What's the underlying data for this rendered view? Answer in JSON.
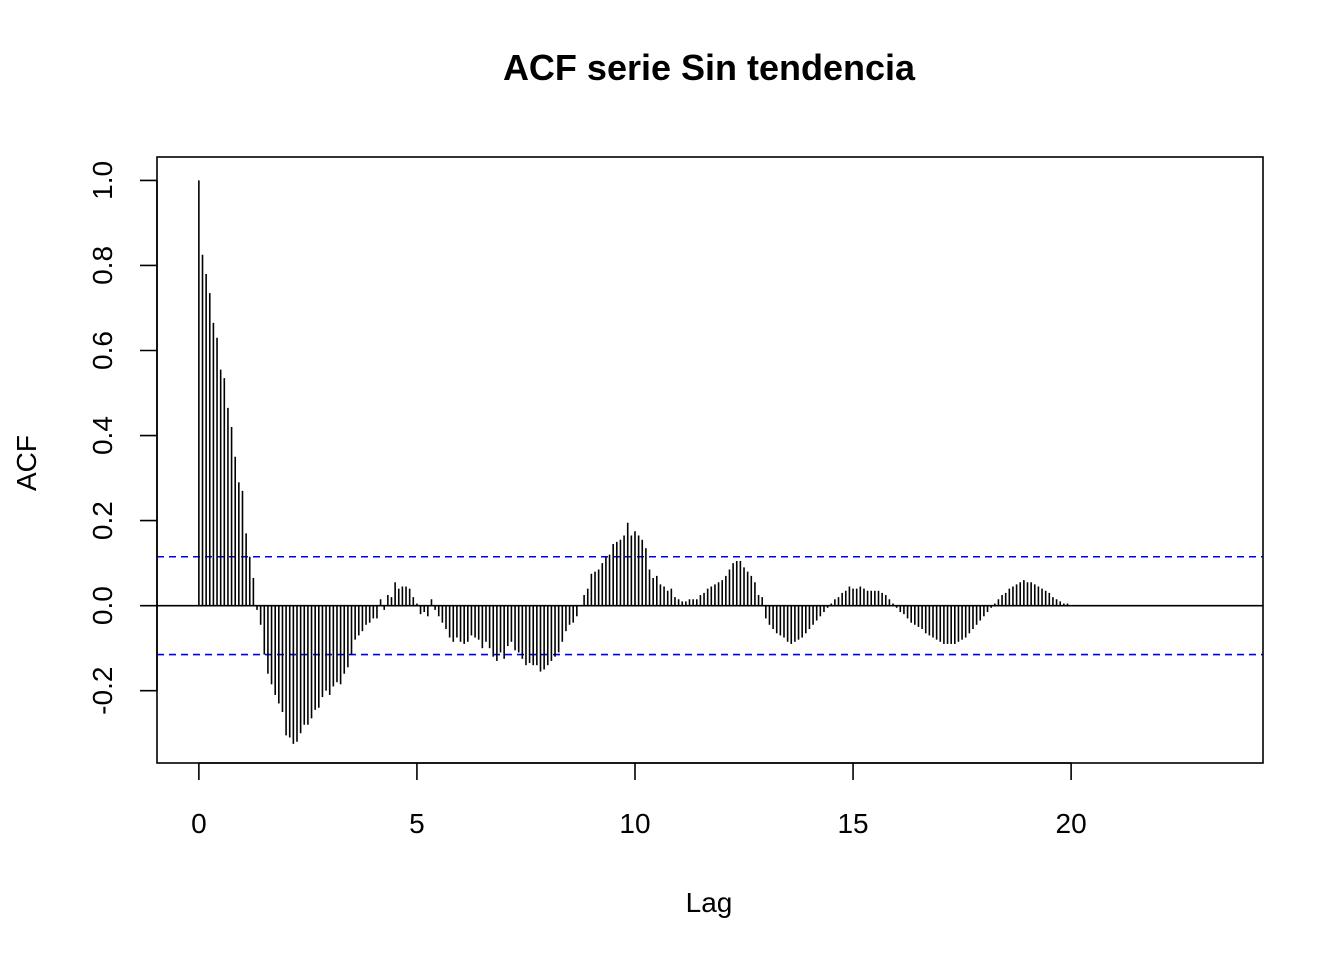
{
  "chart_data": {
    "type": "bar",
    "title": "ACF serie Sin tendencia",
    "xlabel": "Lag",
    "ylabel": "ACF",
    "xlim": [
      -0.96,
      24.4
    ],
    "ylim": [
      -0.37,
      1.055
    ],
    "xticks": [
      0,
      5,
      10,
      15,
      20
    ],
    "xtick_labels": [
      "0",
      "5",
      "10",
      "15",
      "20"
    ],
    "yticks": [
      -0.2,
      0.0,
      0.2,
      0.4,
      0.6,
      0.8,
      1.0
    ],
    "ytick_labels": [
      "-0.2",
      "0.0",
      "0.2",
      "0.4",
      "0.6",
      "0.8",
      "1.0"
    ],
    "confidence_bound": 0.115,
    "confidence_color": "#0000ee",
    "lag_step": 0.0833333,
    "values": [
      1.0,
      0.825,
      0.78,
      0.735,
      0.665,
      0.63,
      0.555,
      0.535,
      0.465,
      0.42,
      0.35,
      0.29,
      0.27,
      0.17,
      0.115,
      0.065,
      -0.01,
      -0.045,
      -0.115,
      -0.16,
      -0.185,
      -0.21,
      -0.23,
      -0.25,
      -0.305,
      -0.31,
      -0.325,
      -0.32,
      -0.3,
      -0.28,
      -0.28,
      -0.265,
      -0.245,
      -0.24,
      -0.215,
      -0.2,
      -0.21,
      -0.19,
      -0.18,
      -0.185,
      -0.16,
      -0.145,
      -0.115,
      -0.08,
      -0.07,
      -0.06,
      -0.045,
      -0.04,
      -0.03,
      -0.03,
      0.015,
      -0.01,
      0.025,
      0.02,
      0.055,
      0.04,
      0.045,
      0.045,
      0.04,
      0.02,
      0.005,
      -0.02,
      -0.015,
      -0.025,
      0.015,
      -0.01,
      -0.025,
      -0.04,
      -0.055,
      -0.075,
      -0.085,
      -0.075,
      -0.085,
      -0.09,
      -0.085,
      -0.07,
      -0.075,
      -0.08,
      -0.1,
      -0.085,
      -0.1,
      -0.12,
      -0.13,
      -0.11,
      -0.125,
      -0.095,
      -0.085,
      -0.105,
      -0.11,
      -0.125,
      -0.14,
      -0.135,
      -0.14,
      -0.14,
      -0.155,
      -0.15,
      -0.14,
      -0.13,
      -0.12,
      -0.11,
      -0.085,
      -0.06,
      -0.045,
      -0.04,
      -0.025,
      0.0,
      0.025,
      0.04,
      0.075,
      0.08,
      0.085,
      0.1,
      0.115,
      0.12,
      0.145,
      0.15,
      0.155,
      0.165,
      0.195,
      0.165,
      0.175,
      0.165,
      0.155,
      0.135,
      0.085,
      0.065,
      0.07,
      0.05,
      0.045,
      0.035,
      0.04,
      0.02,
      0.015,
      0.01,
      0.01,
      0.015,
      0.015,
      0.015,
      0.025,
      0.03,
      0.04,
      0.045,
      0.05,
      0.055,
      0.06,
      0.07,
      0.085,
      0.1,
      0.105,
      0.105,
      0.09,
      0.08,
      0.07,
      0.055,
      0.025,
      0.02,
      -0.03,
      -0.045,
      -0.055,
      -0.065,
      -0.07,
      -0.075,
      -0.085,
      -0.09,
      -0.085,
      -0.08,
      -0.075,
      -0.065,
      -0.055,
      -0.045,
      -0.035,
      -0.025,
      -0.015,
      -0.005,
      0.005,
      0.015,
      0.02,
      0.03,
      0.035,
      0.045,
      0.04,
      0.04,
      0.045,
      0.04,
      0.035,
      0.035,
      0.035,
      0.035,
      0.03,
      0.025,
      0.015,
      0.005,
      -0.005,
      -0.015,
      -0.02,
      -0.03,
      -0.04,
      -0.045,
      -0.05,
      -0.055,
      -0.065,
      -0.07,
      -0.075,
      -0.08,
      -0.085,
      -0.09,
      -0.09,
      -0.09,
      -0.09,
      -0.085,
      -0.08,
      -0.075,
      -0.065,
      -0.055,
      -0.045,
      -0.035,
      -0.025,
      -0.015,
      -0.005,
      0.005,
      0.015,
      0.025,
      0.03,
      0.04,
      0.045,
      0.05,
      0.055,
      0.06,
      0.055,
      0.055,
      0.05,
      0.045,
      0.04,
      0.035,
      0.03,
      0.02,
      0.015,
      0.01,
      0.005,
      0.005
    ]
  }
}
